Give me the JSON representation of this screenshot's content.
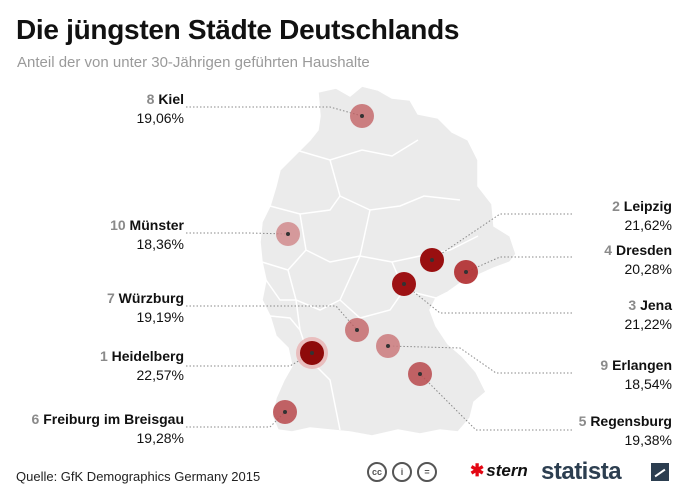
{
  "header": {
    "title": "Die jüngsten Städte Deutschlands",
    "subtitle": "Anteil der von unter 30-Jährigen geführten Haushalte"
  },
  "cities": [
    {
      "rank": "8",
      "name": "Kiel",
      "value": "19,06%",
      "share": 19.06,
      "color": "#c0595c"
    },
    {
      "rank": "10",
      "name": "Münster",
      "value": "18,36%",
      "share": 18.36,
      "color": "#cf8587"
    },
    {
      "rank": "7",
      "name": "Würzburg",
      "value": "19,19%",
      "share": 19.19,
      "color": "#c0595c"
    },
    {
      "rank": "1",
      "name": "Heidelberg",
      "value": "22,57%",
      "share": 22.57,
      "color": "#8e0a0a"
    },
    {
      "rank": "6",
      "name": "Freiburg im Breisgau",
      "value": "19,28%",
      "share": 19.28,
      "color": "#b8494c"
    },
    {
      "rank": "2",
      "name": "Leipzig",
      "value": "21,62%",
      "share": 21.62,
      "color": "#990f10"
    },
    {
      "rank": "4",
      "name": "Dresden",
      "value": "20,28%",
      "share": 20.28,
      "color": "#b02b2e"
    },
    {
      "rank": "3",
      "name": "Jena",
      "value": "21,22%",
      "share": 21.22,
      "color": "#9d1214"
    },
    {
      "rank": "9",
      "name": "Erlangen",
      "value": "18,54%",
      "share": 18.54,
      "color": "#cb7a7c"
    },
    {
      "rank": "5",
      "name": "Regensburg",
      "value": "19,38%",
      "share": 19.38,
      "color": "#b8494c"
    }
  ],
  "map": {
    "land_color": "#ebebeb",
    "border_color": "#ffffff"
  },
  "footer": {
    "source": "Quelle: GfK Demographics Germany 2015",
    "license_icons": [
      "cc",
      "i",
      "="
    ],
    "stern_label": "stern",
    "statista_label": "statista"
  }
}
